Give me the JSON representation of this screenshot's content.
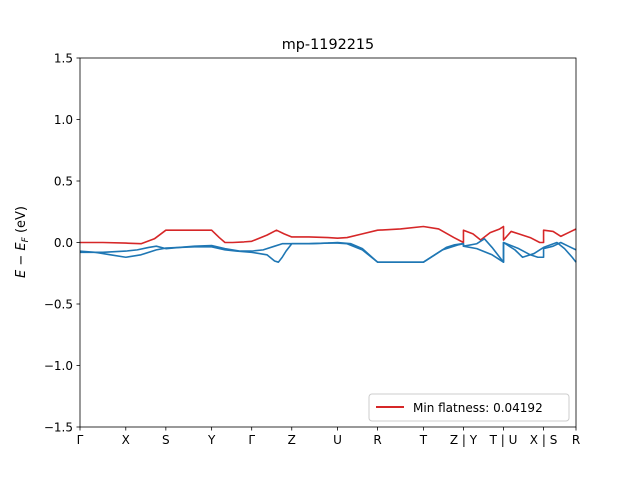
{
  "chart_data": {
    "type": "line",
    "title": "mp-1192215",
    "ylabel": "E − E_F (eV)",
    "ylabel_main": "E",
    "ylabel_minus": " − ",
    "ylabel_E2": "E",
    "ylabel_sub": "F",
    "ylabel_unit": " (eV)",
    "xlim": [
      0,
      13
    ],
    "ylim": [
      -1.5,
      1.5
    ],
    "y_ticks": [
      {
        "value": 1.5,
        "label": "1.5"
      },
      {
        "value": 1.0,
        "label": "1.0"
      },
      {
        "value": 0.5,
        "label": "0.5"
      },
      {
        "value": 0.0,
        "label": "0.0"
      },
      {
        "value": -0.5,
        "label": "−0.5"
      },
      {
        "value": -1.0,
        "label": "−1.0"
      },
      {
        "value": -1.5,
        "label": "−1.5"
      }
    ],
    "x_ticks": [
      {
        "value": 0,
        "label": "Γ"
      },
      {
        "value": 1.2,
        "label": "X"
      },
      {
        "value": 2.25,
        "label": "S"
      },
      {
        "value": 3.45,
        "label": "Y"
      },
      {
        "value": 4.5,
        "label": "Γ"
      },
      {
        "value": 5.55,
        "label": "Z"
      },
      {
        "value": 6.75,
        "label": "U"
      },
      {
        "value": 7.8,
        "label": "R"
      },
      {
        "value": 9.0,
        "label": "T"
      },
      {
        "value": 10.05,
        "label": "Z | Y"
      },
      {
        "value": 11.1,
        "label": "T | U"
      },
      {
        "value": 12.15,
        "label": "X | S"
      },
      {
        "value": 13.0,
        "label": "R"
      }
    ],
    "legend": {
      "label": "Min flatness: 0.04192",
      "placement": "lower-right"
    },
    "colors": {
      "red": "#d62728",
      "blue": "#1f77b4"
    },
    "series": [
      {
        "color": "red",
        "x": [
          0,
          0.6,
          1.2,
          1.6,
          1.95,
          2.25,
          2.8,
          3.45,
          3.65,
          3.8,
          4.0,
          4.3,
          4.5,
          4.9,
          5.15,
          5.35,
          5.55,
          6.0,
          6.5,
          6.75,
          7.0,
          7.4,
          7.8,
          8.4,
          9.0,
          9.4,
          9.8,
          10.05,
          10.05,
          10.3,
          10.5,
          10.75,
          11.0,
          11.1,
          11.1,
          11.3,
          11.5,
          11.8,
          12.05,
          12.15,
          12.15,
          12.4,
          12.6,
          12.8,
          13.0
        ],
        "y": [
          0.0,
          0.0,
          -0.005,
          -0.01,
          0.03,
          0.1,
          0.1,
          0.1,
          0.04,
          0.0,
          0.0,
          0.005,
          0.01,
          0.06,
          0.1,
          0.07,
          0.045,
          0.045,
          0.04,
          0.035,
          0.04,
          0.07,
          0.1,
          0.11,
          0.13,
          0.11,
          0.04,
          0.0,
          0.1,
          0.07,
          0.02,
          0.08,
          0.11,
          0.13,
          0.02,
          0.09,
          0.07,
          0.04,
          0.0,
          0.0,
          0.1,
          0.09,
          0.05,
          0.08,
          0.11
        ]
      },
      {
        "color": "blue",
        "x": [
          0,
          0.3,
          0.6,
          0.9,
          1.2,
          1.5,
          1.8,
          2.0,
          2.25,
          2.6,
          3.0,
          3.45,
          3.8,
          4.1,
          4.5,
          4.9,
          5.1,
          5.2,
          5.3,
          5.4,
          5.55,
          6.0,
          6.5,
          6.75,
          7.0,
          7.4,
          7.8,
          8.4,
          9.0,
          9.3,
          9.6,
          9.8,
          10.0,
          10.05,
          10.05,
          10.4,
          10.6,
          10.8,
          11.0,
          11.1,
          11.1,
          11.4,
          11.6,
          11.9,
          12.15,
          12.15,
          12.5,
          12.7,
          12.9,
          13.0
        ],
        "y": [
          -0.08,
          -0.08,
          -0.08,
          -0.075,
          -0.07,
          -0.06,
          -0.04,
          -0.03,
          -0.05,
          -0.04,
          -0.035,
          -0.035,
          -0.06,
          -0.07,
          -0.08,
          -0.1,
          -0.15,
          -0.16,
          -0.12,
          -0.07,
          -0.01,
          -0.01,
          -0.005,
          -0.005,
          -0.01,
          -0.06,
          -0.16,
          -0.16,
          -0.16,
          -0.1,
          -0.04,
          -0.02,
          -0.01,
          -0.01,
          -0.03,
          -0.01,
          0.03,
          -0.04,
          -0.12,
          -0.16,
          0.0,
          -0.06,
          -0.12,
          -0.09,
          -0.04,
          -0.04,
          0.0,
          -0.05,
          -0.12,
          -0.16
        ]
      },
      {
        "color": "blue",
        "x": [
          0,
          0.4,
          0.8,
          1.2,
          1.6,
          2.0,
          2.25,
          2.6,
          3.0,
          3.45,
          3.8,
          4.2,
          4.5,
          4.8,
          5.1,
          5.3,
          5.55,
          6.0,
          6.5,
          6.75,
          7.1,
          7.4,
          7.8,
          8.4,
          9.0,
          9.5,
          9.9,
          10.05,
          10.05,
          10.4,
          10.8,
          11.1,
          11.1,
          11.5,
          11.8,
          12.0,
          12.15,
          12.15,
          12.4,
          12.6,
          12.8,
          13.0
        ],
        "y": [
          -0.07,
          -0.08,
          -0.1,
          -0.12,
          -0.1,
          -0.06,
          -0.045,
          -0.04,
          -0.03,
          -0.025,
          -0.05,
          -0.07,
          -0.07,
          -0.06,
          -0.03,
          -0.01,
          -0.01,
          -0.01,
          -0.005,
          0.0,
          -0.01,
          -0.05,
          -0.16,
          -0.16,
          -0.16,
          -0.06,
          -0.02,
          -0.01,
          -0.03,
          -0.05,
          -0.1,
          -0.16,
          0.0,
          -0.05,
          -0.1,
          -0.12,
          -0.12,
          -0.05,
          -0.03,
          0.0,
          -0.03,
          -0.06
        ]
      }
    ]
  }
}
